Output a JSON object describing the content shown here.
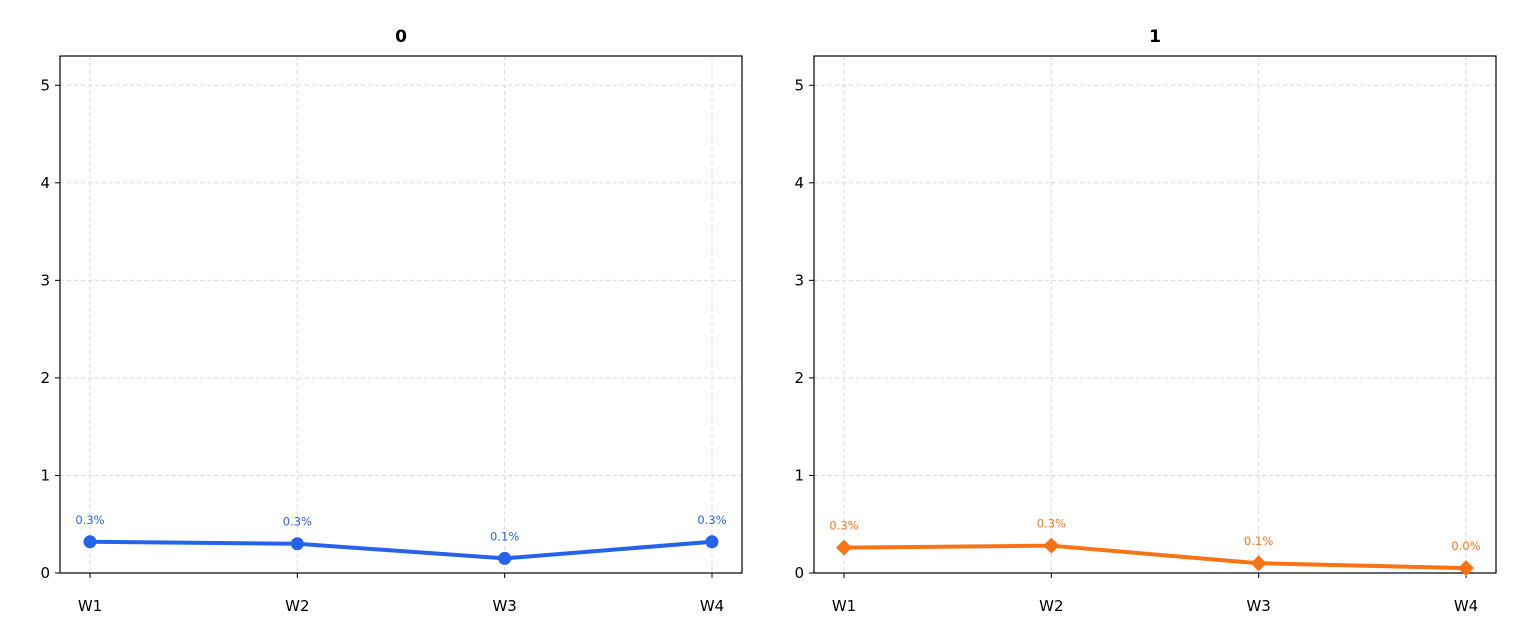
{
  "chart_data": [
    {
      "type": "line",
      "title": "0",
      "xlabel": "",
      "ylabel": "",
      "categories": [
        "W1",
        "W2",
        "W3",
        "W4"
      ],
      "yticks": [
        "0",
        "1",
        "2",
        "3",
        "4",
        "5"
      ],
      "ylim": [
        0,
        5.3
      ],
      "grid": true,
      "marker": "circle",
      "color": "#2563eb",
      "series": [
        {
          "values": [
            0.32,
            0.3,
            0.15,
            0.32
          ],
          "labels": [
            "0.3%",
            "0.3%",
            "0.1%",
            "0.3%"
          ]
        }
      ]
    },
    {
      "type": "line",
      "title": "1",
      "xlabel": "",
      "ylabel": "",
      "categories": [
        "W1",
        "W2",
        "W3",
        "W4"
      ],
      "yticks": [
        "0",
        "1",
        "2",
        "3",
        "4",
        "5"
      ],
      "ylim": [
        0,
        5.3
      ],
      "grid": true,
      "marker": "diamond",
      "color": "#f97316",
      "series": [
        {
          "values": [
            0.26,
            0.28,
            0.1,
            0.05
          ],
          "labels": [
            "0.3%",
            "0.3%",
            "0.1%",
            "0.0%"
          ]
        }
      ]
    }
  ]
}
